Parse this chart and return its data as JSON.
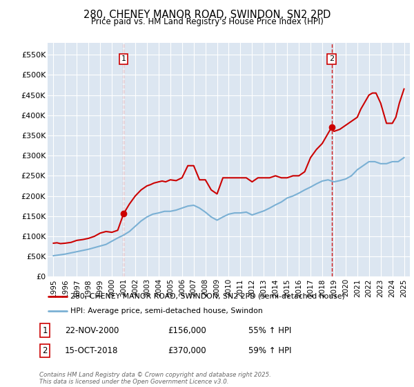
{
  "title": "280, CHENEY MANOR ROAD, SWINDON, SN2 2PD",
  "subtitle": "Price paid vs. HM Land Registry's House Price Index (HPI)",
  "background_color": "#dce6f1",
  "legend_label_red": "280, CHENEY MANOR ROAD, SWINDON, SN2 2PD (semi-detached house)",
  "legend_label_blue": "HPI: Average price, semi-detached house, Swindon",
  "footer": "Contains HM Land Registry data © Crown copyright and database right 2025.\nThis data is licensed under the Open Government Licence v3.0.",
  "marker1_date": "22-NOV-2000",
  "marker1_price": "£156,000",
  "marker1_hpi": "55% ↑ HPI",
  "marker1_year": 2001.0,
  "marker2_date": "15-OCT-2018",
  "marker2_price": "£370,000",
  "marker2_hpi": "59% ↑ HPI",
  "marker2_year": 2018.8,
  "ylim": [
    0,
    580000
  ],
  "yticks": [
    0,
    50000,
    100000,
    150000,
    200000,
    250000,
    300000,
    350000,
    400000,
    450000,
    500000,
    550000
  ],
  "ytick_labels": [
    "£0",
    "£50K",
    "£100K",
    "£150K",
    "£200K",
    "£250K",
    "£300K",
    "£350K",
    "£400K",
    "£450K",
    "£500K",
    "£550K"
  ],
  "red_color": "#cc0000",
  "blue_color": "#7ab0d4",
  "red_x": [
    1995.0,
    1995.3,
    1995.6,
    1996.0,
    1996.5,
    1997.0,
    1997.5,
    1998.0,
    1998.5,
    1999.0,
    1999.5,
    2000.0,
    2000.5,
    2001.0,
    2001.5,
    2002.0,
    2002.5,
    2003.0,
    2003.3,
    2003.6,
    2004.0,
    2004.3,
    2004.6,
    2005.0,
    2005.5,
    2006.0,
    2006.5,
    2007.0,
    2007.5,
    2008.0,
    2008.5,
    2009.0,
    2009.5,
    2010.0,
    2010.5,
    2011.0,
    2011.5,
    2012.0,
    2012.5,
    2013.0,
    2013.5,
    2014.0,
    2014.5,
    2015.0,
    2015.5,
    2016.0,
    2016.5,
    2017.0,
    2017.5,
    2018.0,
    2018.5,
    2018.8,
    2019.0,
    2019.5,
    2020.0,
    2020.5,
    2021.0,
    2021.3,
    2021.6,
    2022.0,
    2022.3,
    2022.6,
    2023.0,
    2023.5,
    2024.0,
    2024.3,
    2024.6,
    2025.0
  ],
  "red_y": [
    83000,
    84000,
    82000,
    83000,
    85000,
    90000,
    92000,
    95000,
    100000,
    108000,
    112000,
    110000,
    115000,
    156000,
    180000,
    200000,
    215000,
    225000,
    228000,
    232000,
    235000,
    237000,
    235000,
    240000,
    238000,
    245000,
    275000,
    275000,
    240000,
    240000,
    215000,
    205000,
    245000,
    245000,
    245000,
    245000,
    245000,
    235000,
    245000,
    245000,
    245000,
    250000,
    245000,
    245000,
    250000,
    250000,
    260000,
    295000,
    315000,
    330000,
    355000,
    370000,
    360000,
    365000,
    375000,
    385000,
    395000,
    415000,
    430000,
    450000,
    455000,
    455000,
    430000,
    380000,
    380000,
    395000,
    430000,
    465000
  ],
  "blue_x": [
    1995.0,
    1995.5,
    1996.0,
    1996.5,
    1997.0,
    1997.5,
    1998.0,
    1998.5,
    1999.0,
    1999.5,
    2000.0,
    2000.5,
    2001.0,
    2001.5,
    2002.0,
    2002.5,
    2003.0,
    2003.5,
    2004.0,
    2004.5,
    2005.0,
    2005.5,
    2006.0,
    2006.5,
    2007.0,
    2007.5,
    2008.0,
    2008.5,
    2009.0,
    2009.5,
    2010.0,
    2010.5,
    2011.0,
    2011.5,
    2012.0,
    2012.5,
    2013.0,
    2013.5,
    2014.0,
    2014.5,
    2015.0,
    2015.5,
    2016.0,
    2016.5,
    2017.0,
    2017.5,
    2018.0,
    2018.5,
    2019.0,
    2019.5,
    2020.0,
    2020.5,
    2021.0,
    2021.5,
    2022.0,
    2022.5,
    2023.0,
    2023.5,
    2024.0,
    2024.5,
    2025.0
  ],
  "blue_y": [
    52000,
    54000,
    56000,
    59000,
    62000,
    65000,
    68000,
    72000,
    76000,
    80000,
    88000,
    96000,
    103000,
    112000,
    125000,
    138000,
    148000,
    155000,
    158000,
    162000,
    162000,
    165000,
    170000,
    175000,
    177000,
    170000,
    160000,
    148000,
    140000,
    148000,
    155000,
    158000,
    158000,
    160000,
    153000,
    158000,
    163000,
    170000,
    178000,
    185000,
    195000,
    200000,
    207000,
    215000,
    222000,
    230000,
    237000,
    240000,
    235000,
    238000,
    242000,
    250000,
    265000,
    275000,
    285000,
    285000,
    280000,
    280000,
    285000,
    285000,
    295000
  ],
  "xticks": [
    1995,
    1996,
    1997,
    1998,
    1999,
    2000,
    2001,
    2002,
    2003,
    2004,
    2005,
    2006,
    2007,
    2008,
    2009,
    2010,
    2011,
    2012,
    2013,
    2014,
    2015,
    2016,
    2017,
    2018,
    2019,
    2020,
    2021,
    2022,
    2023,
    2024,
    2025
  ],
  "xlim": [
    1994.5,
    2025.5
  ]
}
